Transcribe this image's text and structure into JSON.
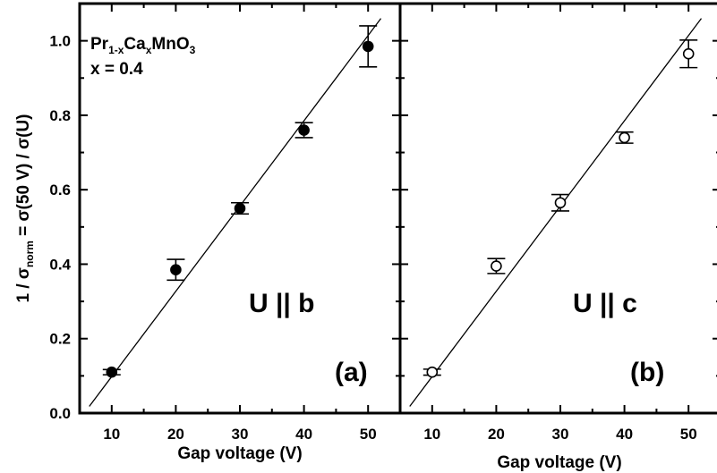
{
  "chart_data": [
    {
      "type": "scatter",
      "panel": "(a)",
      "annotation": "U || b",
      "formula": {
        "p1": "Pr",
        "s1": "1-x",
        "p2": "Ca",
        "s2": "x",
        "p3": "MnO",
        "s3": "3"
      },
      "composition": "x = 0.4",
      "xlabel": "Gap voltage  (V)",
      "ylabel": {
        "pre": "1 / σ",
        "sub": "norm",
        "post": "  =  σ(50 V) / σ(U)"
      },
      "xlim": [
        5,
        55
      ],
      "ylim": [
        0,
        1.1
      ],
      "xticks": [
        10,
        20,
        30,
        40,
        50
      ],
      "yticks": [
        0.0,
        0.2,
        0.4,
        0.6,
        0.8,
        1.0
      ],
      "ytick_labels": [
        "0.0",
        "0.2",
        "0.4",
        "0.6",
        "0.8",
        "1.0"
      ],
      "marker": "filled-circle",
      "series": [
        {
          "x": [
            10,
            20,
            30,
            40,
            50
          ],
          "y": [
            0.11,
            0.385,
            0.55,
            0.76,
            0.985
          ],
          "yerr": [
            0.007,
            0.028,
            0.015,
            0.02,
            0.055
          ]
        }
      ],
      "fit_line": {
        "x": [
          6.5,
          52
        ],
        "y": [
          0.018,
          1.06
        ]
      }
    },
    {
      "type": "scatter",
      "panel": "(b)",
      "annotation": "U || c",
      "xlabel": "Gap voltage  (V)",
      "xlim": [
        5,
        55
      ],
      "ylim": [
        0,
        1.1
      ],
      "xticks": [
        10,
        20,
        30,
        40,
        50
      ],
      "marker": "open-circle",
      "series": [
        {
          "x": [
            10,
            20,
            30,
            40,
            50
          ],
          "y": [
            0.11,
            0.395,
            0.565,
            0.74,
            0.965
          ],
          "yerr": [
            0.008,
            0.02,
            0.022,
            0.015,
            0.037
          ]
        }
      ],
      "fit_line": {
        "x": [
          6.5,
          52
        ],
        "y": [
          0.018,
          1.06
        ]
      }
    }
  ]
}
